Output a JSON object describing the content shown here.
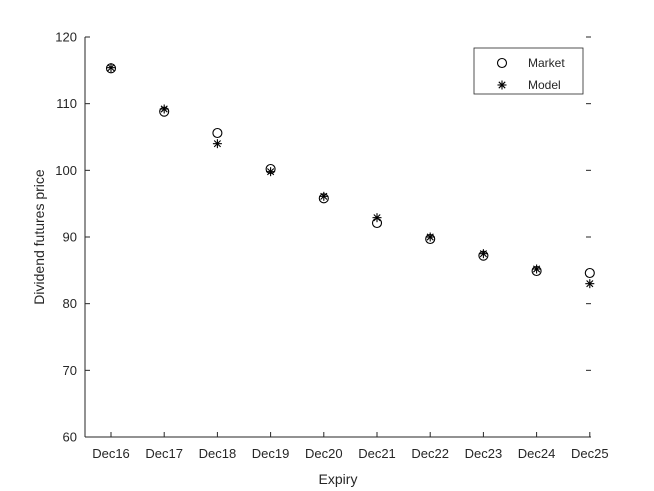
{
  "chart_data": {
    "type": "scatter",
    "title": "",
    "xlabel": "Expiry",
    "ylabel": "Dividend futures price",
    "categories": [
      "Dec16",
      "Dec17",
      "Dec18",
      "Dec19",
      "Dec20",
      "Dec21",
      "Dec22",
      "Dec23",
      "Dec24",
      "Dec25"
    ],
    "ylim": [
      60,
      120
    ],
    "yticks": [
      60,
      70,
      80,
      90,
      100,
      110,
      120
    ],
    "grid": false,
    "legend_position": "top-right",
    "series": [
      {
        "name": "Market",
        "marker": "circle",
        "values": [
          115.3,
          108.8,
          105.6,
          100.2,
          95.8,
          92.1,
          89.7,
          87.2,
          84.9,
          84.6
        ]
      },
      {
        "name": "Model",
        "marker": "asterisk",
        "values": [
          115.4,
          109.2,
          104.0,
          99.8,
          96.1,
          92.9,
          90.0,
          87.5,
          85.2,
          83.0
        ]
      }
    ],
    "colors": {
      "axis": "#262626",
      "marker": "#000000"
    }
  }
}
